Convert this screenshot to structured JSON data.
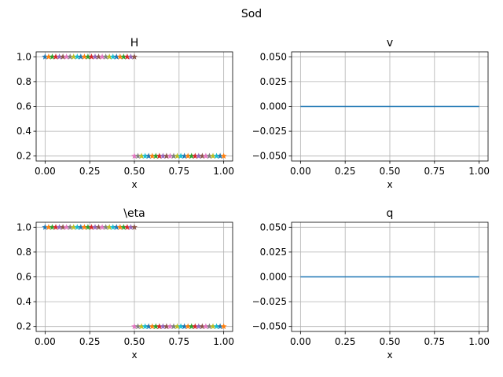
{
  "figure": {
    "suptitle": "Sod"
  },
  "chart_data": [
    {
      "type": "scatter",
      "title": "H",
      "xlabel": "x",
      "ylabel": "",
      "xlim": [
        -0.05,
        1.05
      ],
      "ylim": [
        0.16,
        1.04
      ],
      "xticks": [
        0.0,
        0.25,
        0.5,
        0.75,
        1.0
      ],
      "xtick_labels": [
        "0.00",
        "0.25",
        "0.50",
        "0.75",
        "1.00"
      ],
      "yticks": [
        0.2,
        0.4,
        0.6,
        0.8,
        1.0
      ],
      "ytick_labels": [
        "0.2",
        "0.4",
        "0.6",
        "0.8",
        "1.0"
      ],
      "grid": true,
      "marker": "star",
      "series": [
        {
          "x_start": 0.0,
          "x_end": 0.5,
          "y": 1.0,
          "count": 26
        },
        {
          "x_start": 0.5,
          "x_end": 1.0,
          "y": 0.2,
          "count": 26
        }
      ]
    },
    {
      "type": "line",
      "title": "v",
      "xlabel": "x",
      "ylabel": "",
      "xlim": [
        -0.05,
        1.05
      ],
      "ylim": [
        -0.055,
        0.055
      ],
      "xticks": [
        0.0,
        0.25,
        0.5,
        0.75,
        1.0
      ],
      "xtick_labels": [
        "0.00",
        "0.25",
        "0.50",
        "0.75",
        "1.00"
      ],
      "yticks": [
        -0.05,
        -0.025,
        0.0,
        0.025,
        0.05
      ],
      "ytick_labels": [
        "−0.050",
        "−0.025",
        "0.000",
        "0.025",
        "0.050"
      ],
      "grid": true,
      "series": [
        {
          "x": [
            0.0,
            1.0
          ],
          "y": [
            0.0,
            0.0
          ],
          "color": "#1f77b4"
        }
      ]
    },
    {
      "type": "scatter",
      "title": "\\eta",
      "xlabel": "x",
      "ylabel": "",
      "xlim": [
        -0.05,
        1.05
      ],
      "ylim": [
        0.16,
        1.04
      ],
      "xticks": [
        0.0,
        0.25,
        0.5,
        0.75,
        1.0
      ],
      "xtick_labels": [
        "0.00",
        "0.25",
        "0.50",
        "0.75",
        "1.00"
      ],
      "yticks": [
        0.2,
        0.4,
        0.6,
        0.8,
        1.0
      ],
      "ytick_labels": [
        "0.2",
        "0.4",
        "0.6",
        "0.8",
        "1.0"
      ],
      "grid": true,
      "marker": "star",
      "series": [
        {
          "x_start": 0.0,
          "x_end": 0.5,
          "y": 1.0,
          "count": 26
        },
        {
          "x_start": 0.5,
          "x_end": 1.0,
          "y": 0.2,
          "count": 26
        }
      ]
    },
    {
      "type": "line",
      "title": "q",
      "xlabel": "x",
      "ylabel": "",
      "xlim": [
        -0.05,
        1.05
      ],
      "ylim": [
        -0.055,
        0.055
      ],
      "xticks": [
        0.0,
        0.25,
        0.5,
        0.75,
        1.0
      ],
      "xtick_labels": [
        "0.00",
        "0.25",
        "0.50",
        "0.75",
        "1.00"
      ],
      "yticks": [
        -0.05,
        -0.025,
        0.0,
        0.025,
        0.05
      ],
      "ytick_labels": [
        "−0.050",
        "−0.025",
        "0.000",
        "0.025",
        "0.050"
      ],
      "grid": true,
      "series": [
        {
          "x": [
            0.0,
            1.0
          ],
          "y": [
            0.0,
            0.0
          ],
          "color": "#1f77b4"
        }
      ]
    }
  ],
  "colors": {
    "marker_cycle": [
      "#1f77b4",
      "#ff7f0e",
      "#2ca02c",
      "#d62728",
      "#9467bd",
      "#8c564b",
      "#e377c2",
      "#7f7f7f",
      "#bcbd22",
      "#17becf"
    ],
    "grid": "#b0b0b0",
    "line": "#1f77b4"
  }
}
